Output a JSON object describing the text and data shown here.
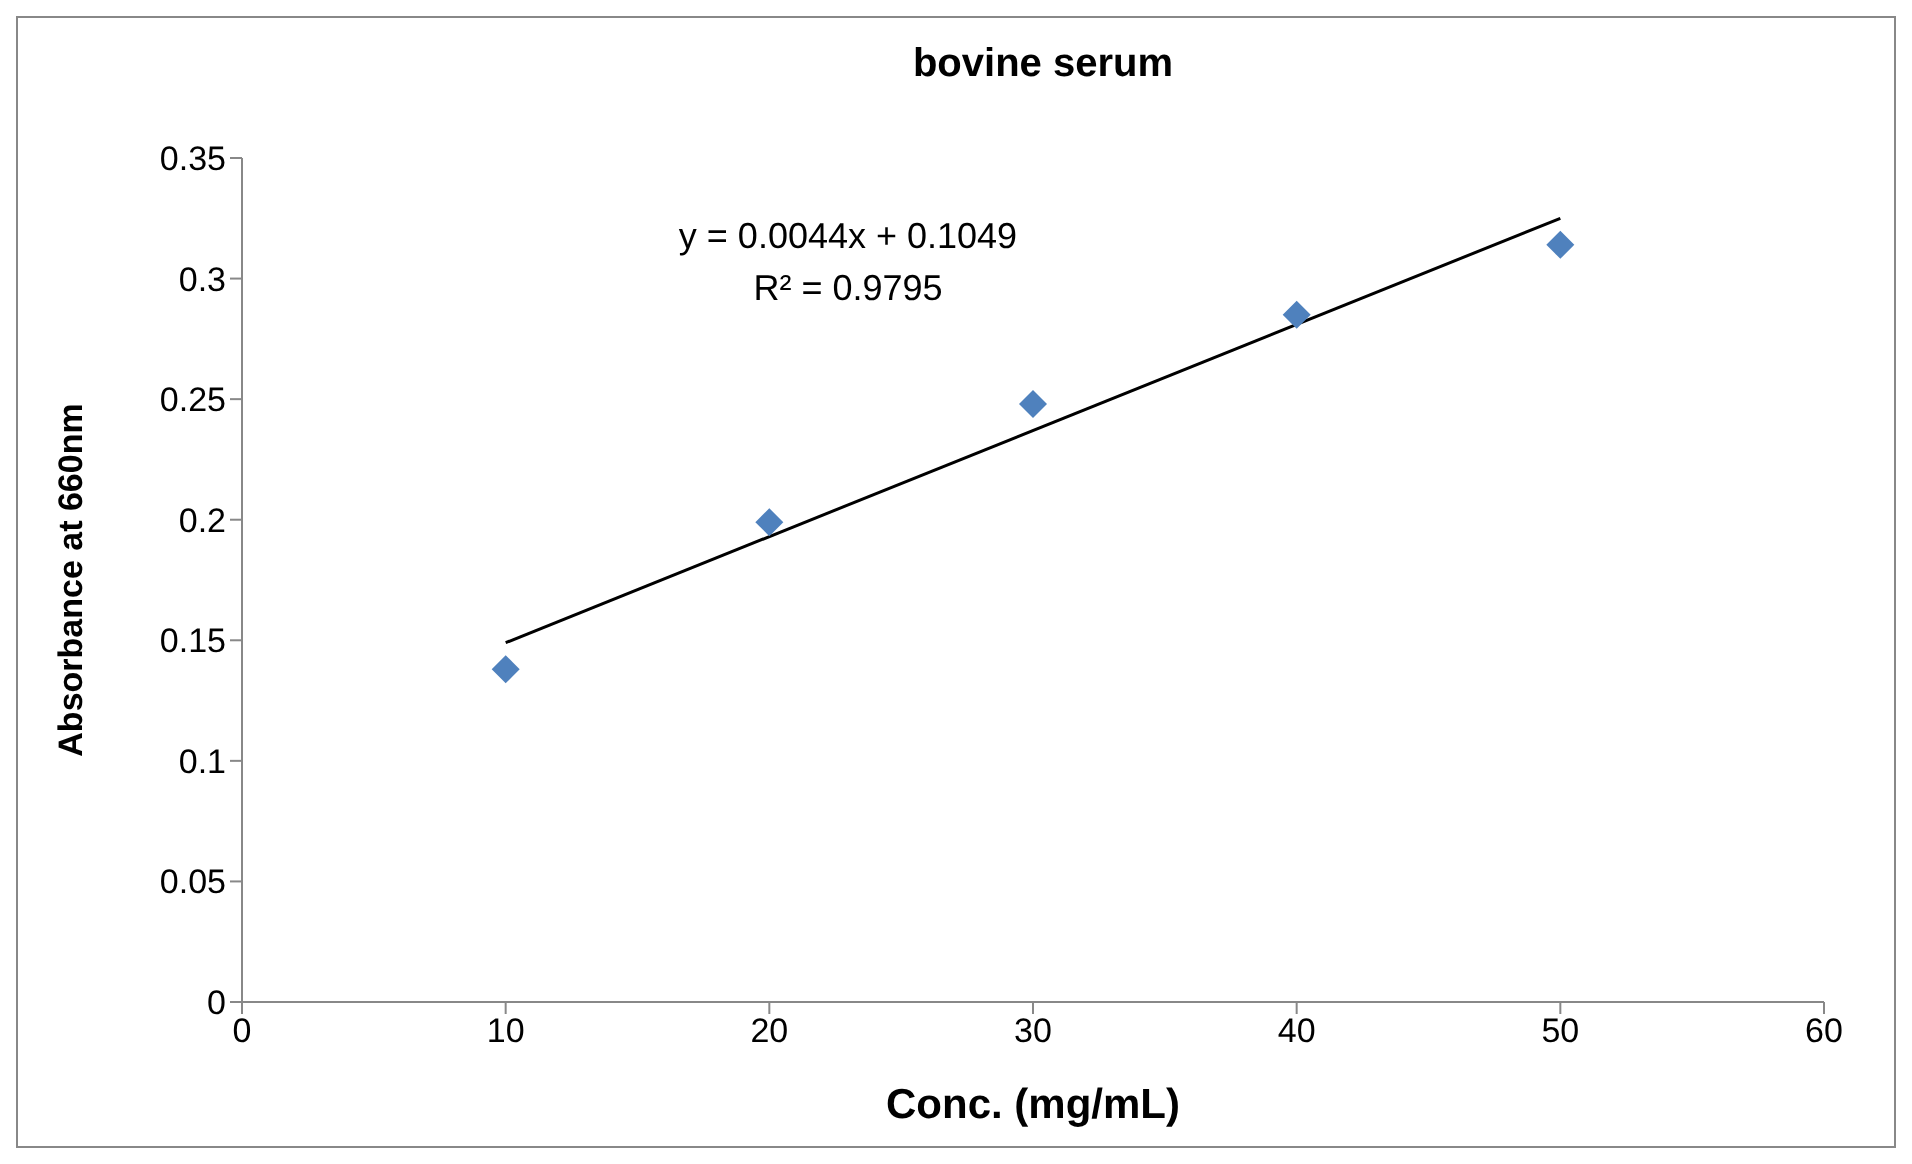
{
  "chart_data": {
    "type": "scatter",
    "title": "bovine serum",
    "xlabel": "Conc. (mg/mL)",
    "ylabel": "Absorbance at 660nm",
    "x": [
      10,
      20,
      30,
      40,
      50
    ],
    "series": [
      {
        "color": "#4f81bd",
        "values": [
          0.138,
          0.199,
          0.248,
          0.285,
          0.314
        ]
      },
      {
        "type": "line",
        "color": "#000000",
        "marker": "none",
        "x": [
          10,
          50
        ],
        "values": [
          0.149,
          0.325
        ]
      }
    ],
    "annotations": [
      "y = 0.0044x + 0.1049",
      "R² = 0.9795"
    ],
    "xlim": [
      0,
      60
    ],
    "xticks": [
      0,
      10,
      20,
      30,
      40,
      50,
      60
    ],
    "ylim": [
      0,
      0.35
    ],
    "yticks": [
      0,
      0.05,
      0.1,
      0.15,
      0.2,
      0.25,
      0.3,
      0.35
    ],
    "grid": false,
    "legend": false,
    "marker": "diamond"
  }
}
